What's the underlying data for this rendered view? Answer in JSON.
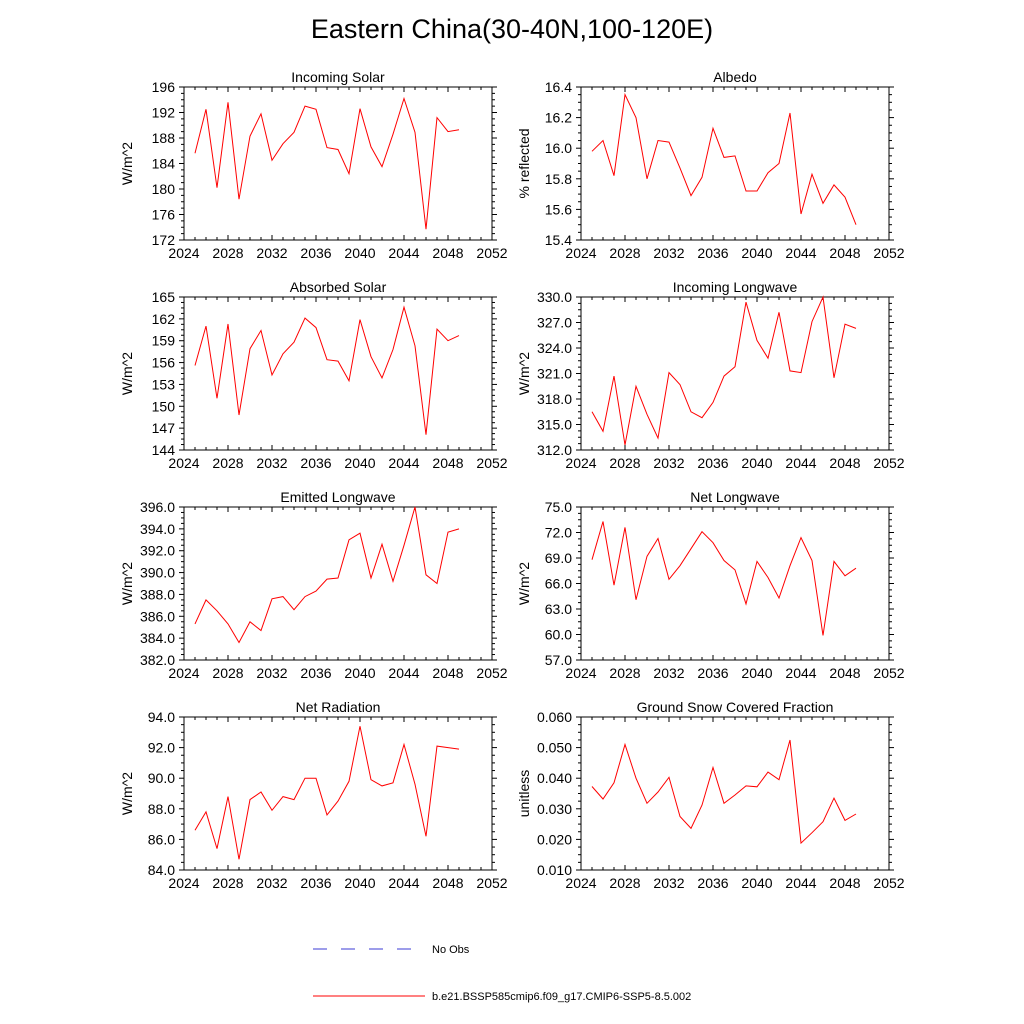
{
  "title": "Eastern China(30-40N,100-120E)",
  "legend": {
    "obs_label": "No Obs",
    "obs_color": "#3b3bd6",
    "model_label": "b.e21.BSSP585cmip6.f09_g17.CMIP6-SSP5-8.5.002",
    "model_color": "#ff0000"
  },
  "chart_data": [
    {
      "type": "line",
      "title": "Incoming Solar",
      "xlabel": "",
      "ylabel": "W/m^2",
      "xlim": [
        2024,
        2052
      ],
      "ylim": [
        172,
        196
      ],
      "xticks": [
        2024,
        2028,
        2032,
        2036,
        2040,
        2044,
        2048,
        2052
      ],
      "yticks": [
        "172",
        "176",
        "180",
        "184",
        "188",
        "192",
        "196"
      ],
      "x": [
        2025,
        2026,
        2027,
        2028,
        2029,
        2030,
        2031,
        2032,
        2033,
        2034,
        2035,
        2036,
        2037,
        2038,
        2039,
        2040,
        2041,
        2042,
        2043,
        2044,
        2045,
        2046,
        2047,
        2048,
        2049
      ],
      "values": [
        185.6,
        192.5,
        180.2,
        193.6,
        178.4,
        188.3,
        191.8,
        184.5,
        187.1,
        188.9,
        193.0,
        192.5,
        186.5,
        186.2,
        182.4,
        192.6,
        186.6,
        183.5,
        188.6,
        194.2,
        188.9,
        173.7,
        191.2,
        189.0,
        189.3
      ]
    },
    {
      "type": "line",
      "title": "Albedo",
      "xlabel": "",
      "ylabel": "% reflected",
      "xlim": [
        2024,
        2052
      ],
      "ylim": [
        15.4,
        16.4
      ],
      "xticks": [
        2024,
        2028,
        2032,
        2036,
        2040,
        2044,
        2048,
        2052
      ],
      "yticks": [
        "15.4",
        "15.6",
        "15.8",
        "16.0",
        "16.2",
        "16.4"
      ],
      "x": [
        2025,
        2026,
        2027,
        2028,
        2029,
        2030,
        2031,
        2032,
        2033,
        2034,
        2035,
        2036,
        2037,
        2038,
        2039,
        2040,
        2041,
        2042,
        2043,
        2044,
        2045,
        2046,
        2047,
        2048,
        2049
      ],
      "values": [
        15.98,
        16.05,
        15.82,
        16.35,
        16.2,
        15.8,
        16.05,
        16.04,
        15.87,
        15.69,
        15.81,
        16.13,
        15.94,
        15.95,
        15.72,
        15.72,
        15.84,
        15.9,
        16.23,
        15.57,
        15.83,
        15.64,
        15.76,
        15.68,
        15.5
      ]
    },
    {
      "type": "line",
      "title": "Absorbed Solar",
      "xlabel": "",
      "ylabel": "W/m^2",
      "xlim": [
        2024,
        2052
      ],
      "ylim": [
        144,
        165
      ],
      "xticks": [
        2024,
        2028,
        2032,
        2036,
        2040,
        2044,
        2048,
        2052
      ],
      "yticks": [
        "144",
        "147",
        "150",
        "153",
        "156",
        "159",
        "162",
        "165"
      ],
      "x": [
        2025,
        2026,
        2027,
        2028,
        2029,
        2030,
        2031,
        2032,
        2033,
        2034,
        2035,
        2036,
        2037,
        2038,
        2039,
        2040,
        2041,
        2042,
        2043,
        2044,
        2045,
        2046,
        2047,
        2048,
        2049
      ],
      "values": [
        155.6,
        161.0,
        151.1,
        161.3,
        148.8,
        157.9,
        160.4,
        154.3,
        157.2,
        158.8,
        162.1,
        160.8,
        156.4,
        156.2,
        153.5,
        161.9,
        156.8,
        153.9,
        157.8,
        163.6,
        158.3,
        146.1,
        160.6,
        159.0,
        159.7
      ]
    },
    {
      "type": "line",
      "title": "Incoming Longwave",
      "xlabel": "",
      "ylabel": "W/m^2",
      "xlim": [
        2024,
        2052
      ],
      "ylim": [
        312.0,
        330.0
      ],
      "xticks": [
        2024,
        2028,
        2032,
        2036,
        2040,
        2044,
        2048,
        2052
      ],
      "yticks": [
        "312.0",
        "315.0",
        "318.0",
        "321.0",
        "324.0",
        "327.0",
        "330.0"
      ],
      "x": [
        2025,
        2026,
        2027,
        2028,
        2029,
        2030,
        2031,
        2032,
        2033,
        2034,
        2035,
        2036,
        2037,
        2038,
        2039,
        2040,
        2041,
        2042,
        2043,
        2044,
        2045,
        2046,
        2047,
        2048,
        2049
      ],
      "values": [
        316.5,
        314.2,
        320.7,
        312.6,
        319.5,
        316.2,
        313.4,
        321.1,
        319.7,
        316.5,
        315.8,
        317.6,
        320.7,
        321.8,
        329.4,
        324.9,
        322.8,
        328.2,
        321.3,
        321.1,
        327.1,
        330.0,
        320.5,
        326.8,
        326.3
      ]
    },
    {
      "type": "line",
      "title": "Emitted Longwave",
      "xlabel": "",
      "ylabel": "W/m^2",
      "xlim": [
        2024,
        2052
      ],
      "ylim": [
        382.0,
        396.0
      ],
      "xticks": [
        2024,
        2028,
        2032,
        2036,
        2040,
        2044,
        2048,
        2052
      ],
      "yticks": [
        "382.0",
        "384.0",
        "386.0",
        "388.0",
        "390.0",
        "392.0",
        "394.0",
        "396.0"
      ],
      "x": [
        2025,
        2026,
        2027,
        2028,
        2029,
        2030,
        2031,
        2032,
        2033,
        2034,
        2035,
        2036,
        2037,
        2038,
        2039,
        2040,
        2041,
        2042,
        2043,
        2044,
        2045,
        2046,
        2047,
        2048,
        2049
      ],
      "values": [
        385.3,
        387.5,
        386.5,
        385.3,
        383.6,
        385.5,
        384.7,
        387.6,
        387.8,
        386.6,
        387.8,
        388.3,
        389.4,
        389.5,
        393.0,
        393.6,
        389.5,
        392.6,
        389.2,
        392.5,
        396.0,
        389.8,
        389.0,
        393.7,
        394.0
      ]
    },
    {
      "type": "line",
      "title": "Net Longwave",
      "xlabel": "",
      "ylabel": "W/m^2",
      "xlim": [
        2024,
        2052
      ],
      "ylim": [
        57.0,
        75.0
      ],
      "xticks": [
        2024,
        2028,
        2032,
        2036,
        2040,
        2044,
        2048,
        2052
      ],
      "yticks": [
        "57.0",
        "60.0",
        "63.0",
        "66.0",
        "69.0",
        "72.0",
        "75.0"
      ],
      "x": [
        2025,
        2026,
        2027,
        2028,
        2029,
        2030,
        2031,
        2032,
        2033,
        2034,
        2035,
        2036,
        2037,
        2038,
        2039,
        2040,
        2041,
        2042,
        2043,
        2044,
        2045,
        2046,
        2047,
        2048,
        2049
      ],
      "values": [
        68.8,
        73.3,
        65.8,
        72.6,
        64.1,
        69.2,
        71.3,
        66.5,
        68.1,
        70.1,
        72.1,
        70.8,
        68.7,
        67.6,
        63.6,
        68.6,
        66.7,
        64.3,
        68.1,
        71.4,
        68.7,
        59.9,
        68.6,
        66.9,
        67.8
      ]
    },
    {
      "type": "line",
      "title": "Net Radiation",
      "xlabel": "",
      "ylabel": "W/m^2",
      "xlim": [
        2024,
        2052
      ],
      "ylim": [
        84.0,
        94.0
      ],
      "xticks": [
        2024,
        2028,
        2032,
        2036,
        2040,
        2044,
        2048,
        2052
      ],
      "yticks": [
        "84.0",
        "86.0",
        "88.0",
        "90.0",
        "92.0",
        "94.0"
      ],
      "x": [
        2025,
        2026,
        2027,
        2028,
        2029,
        2030,
        2031,
        2032,
        2033,
        2034,
        2035,
        2036,
        2037,
        2038,
        2039,
        2040,
        2041,
        2042,
        2043,
        2044,
        2045,
        2046,
        2047,
        2048,
        2049
      ],
      "values": [
        86.6,
        87.8,
        85.4,
        88.8,
        84.7,
        88.6,
        89.1,
        87.9,
        88.8,
        88.6,
        90.0,
        90.0,
        87.6,
        88.5,
        89.8,
        93.4,
        89.9,
        89.5,
        89.7,
        92.2,
        89.6,
        86.2,
        92.1,
        92.0,
        91.9
      ]
    },
    {
      "type": "line",
      "title": "Ground Snow Covered Fraction",
      "xlabel": "",
      "ylabel": "unitless",
      "xlim": [
        2024,
        2052
      ],
      "ylim": [
        0.01,
        0.06
      ],
      "xticks": [
        2024,
        2028,
        2032,
        2036,
        2040,
        2044,
        2048,
        2052
      ],
      "yticks": [
        "0.010",
        "0.020",
        "0.030",
        "0.040",
        "0.050",
        "0.060"
      ],
      "x": [
        2025,
        2026,
        2027,
        2028,
        2029,
        2030,
        2031,
        2032,
        2033,
        2034,
        2035,
        2036,
        2037,
        2038,
        2039,
        2040,
        2041,
        2042,
        2043,
        2044,
        2045,
        2046,
        2047,
        2048,
        2049
      ],
      "values": [
        0.0373,
        0.0332,
        0.0385,
        0.051,
        0.04,
        0.0318,
        0.0355,
        0.0403,
        0.0275,
        0.0236,
        0.0312,
        0.0435,
        0.0318,
        0.0345,
        0.0375,
        0.0372,
        0.042,
        0.0395,
        0.0525,
        0.0188,
        0.0222,
        0.0258,
        0.0335,
        0.0262,
        0.0283
      ]
    }
  ]
}
